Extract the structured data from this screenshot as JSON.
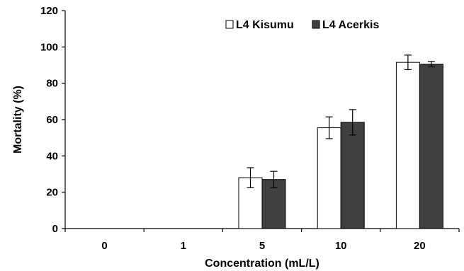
{
  "chart_data": {
    "type": "bar",
    "title": "",
    "xlabel": "Concentration (mL/L)",
    "ylabel": "Mortality (%)",
    "categories": [
      "0",
      "1",
      "5",
      "10",
      "20"
    ],
    "ylim": [
      0,
      120
    ],
    "yticks": [
      "0",
      "20",
      "40",
      "60",
      "80",
      "100",
      "120"
    ],
    "grid": false,
    "legend_position": "top-right",
    "series": [
      {
        "name": "L4 Kisumu",
        "color": "#ffffff",
        "values": [
          0,
          0,
          28,
          55.5,
          91.5
        ],
        "errors": [
          0,
          0,
          5.5,
          6,
          4
        ]
      },
      {
        "name": "L4 Acerkis",
        "color": "#404040",
        "values": [
          0,
          0,
          27,
          58.5,
          90.5
        ],
        "errors": [
          0,
          0,
          4.5,
          7,
          1.5
        ]
      }
    ]
  }
}
